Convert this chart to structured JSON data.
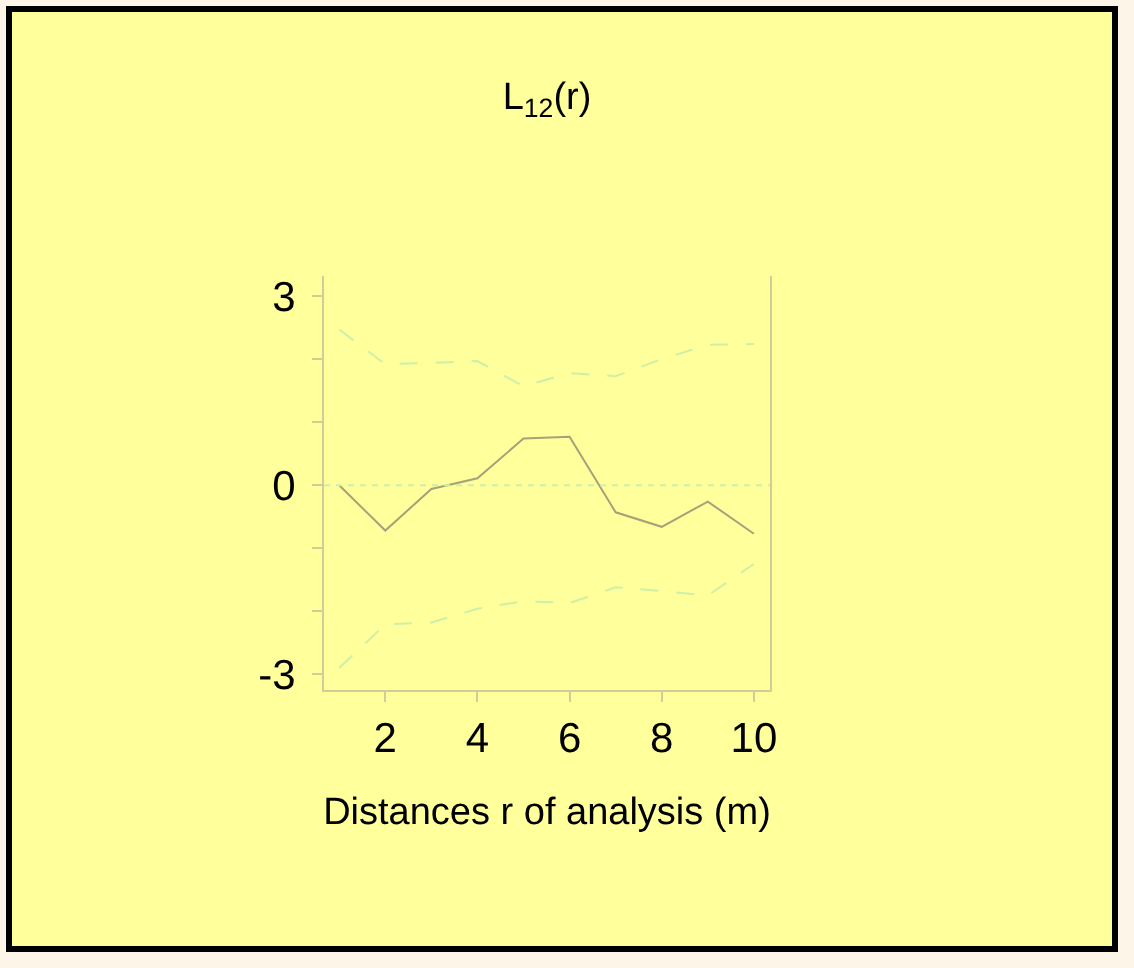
{
  "chart_data": {
    "type": "line",
    "title": "L$_{12}$(r)",
    "xlabel": "Distances r of analysis (m)",
    "x": [
      1,
      2,
      3,
      4,
      5,
      6,
      7,
      8,
      9,
      10
    ],
    "series": [
      {
        "color": "#ccf0a8",
        "line_style": "dashed",
        "values": [
          2.47,
          1.92,
          1.94,
          1.97,
          1.57,
          1.78,
          1.73,
          2.0,
          2.23,
          2.24
        ]
      },
      {
        "color": "#a8a078",
        "line_style": "solid",
        "values": [
          0,
          -0.72,
          -0.06,
          0.11,
          0.74,
          0.77,
          -0.43,
          -0.66,
          -0.26,
          -0.77
        ]
      },
      {
        "color": "#ccf0a8",
        "line_style": "dashed",
        "values": [
          -2.9,
          -2.21,
          -2.18,
          -1.96,
          -1.84,
          -1.87,
          -1.62,
          -1.68,
          -1.75,
          -1.25
        ]
      }
    ],
    "xlim": [
      0.67,
      10.35
    ],
    "xticks": [
      2,
      4,
      6,
      8,
      10
    ],
    "ylim": [
      -3.25,
      3.32
    ],
    "yticks": [
      -3,
      {
        "value": -2,
        "label": null
      },
      {
        "value": -1,
        "label": null
      },
      0,
      {
        "value": 1,
        "label": null
      },
      {
        "value": 2,
        "label": null
      },
      3
    ],
    "ref_lines": [
      {
        "axis": "y",
        "value": 0,
        "color": "#ccf0a8",
        "line_style": "dotted"
      }
    ],
    "grid": false,
    "marker": "none"
  }
}
